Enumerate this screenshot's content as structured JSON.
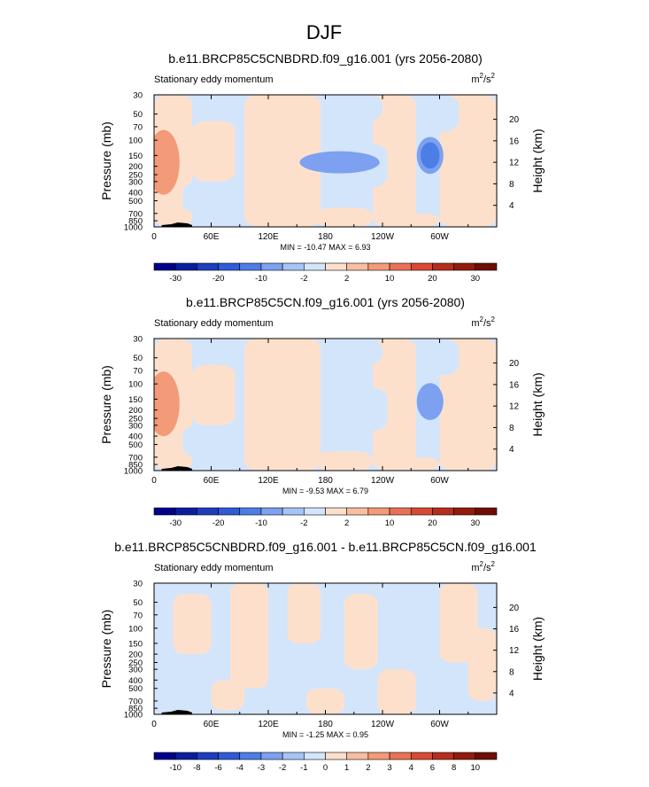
{
  "figure": {
    "title": "DJF"
  },
  "chart_data": [
    {
      "type": "heatmap",
      "title": "b.e11.BRCP85C5CNBDRD.f09_g16.001 (yrs 2056-2080)",
      "subtitle_left": "Stationary eddy momentum",
      "units": "m²/s²",
      "units_base": "m",
      "units_sup1": "2",
      "units_mid": "/s",
      "units_sup2": "2",
      "ylabel": "Pressure (mb)",
      "ylabel_right": "Height (km)",
      "xticks": [
        "0",
        "60E",
        "120E",
        "180",
        "120W",
        "60W"
      ],
      "yticks_left": [
        "30",
        "50",
        "70",
        "100",
        "150",
        "200",
        "250",
        "300",
        "400",
        "500",
        "700",
        "850",
        "1000"
      ],
      "yticks_right": [
        "20",
        "16",
        "12",
        "8",
        "4"
      ],
      "stats": "MIN = -10.47  MAX =  6.93",
      "colorbar_labels": [
        "-30",
        "-20",
        "-10",
        "-2",
        "2",
        "10",
        "20",
        "30"
      ],
      "features": [
        {
          "lon": 195,
          "p": 180,
          "rx": 30,
          "ry": 0.12,
          "v": -6
        },
        {
          "lon": 10,
          "p": 180,
          "rx": 12,
          "ry": 0.35,
          "v": 5
        },
        {
          "lon": 290,
          "p": 150,
          "rx": 10,
          "ry": 0.2,
          "v": -10.47
        }
      ]
    },
    {
      "type": "heatmap",
      "title": "b.e11.BRCP85C5CN.f09_g16.001 (yrs 2056-2080)",
      "subtitle_left": "Stationary eddy momentum",
      "units": "m²/s²",
      "units_base": "m",
      "units_sup1": "2",
      "units_mid": "/s",
      "units_sup2": "2",
      "ylabel": "Pressure (mb)",
      "ylabel_right": "Height (km)",
      "xticks": [
        "0",
        "60E",
        "120E",
        "180",
        "120W",
        "60W"
      ],
      "yticks_left": [
        "30",
        "50",
        "70",
        "100",
        "150",
        "200",
        "250",
        "300",
        "400",
        "500",
        "700",
        "850",
        "1000"
      ],
      "yticks_right": [
        "20",
        "16",
        "12",
        "8",
        "4"
      ],
      "stats": "MIN = -9.53  MAX =  6.79",
      "colorbar_labels": [
        "-30",
        "-20",
        "-10",
        "-2",
        "2",
        "10",
        "20",
        "30"
      ],
      "features": [
        {
          "lon": 10,
          "p": 170,
          "rx": 12,
          "ry": 0.35,
          "v": 5
        },
        {
          "lon": 290,
          "p": 160,
          "rx": 10,
          "ry": 0.2,
          "v": -9.53
        }
      ]
    },
    {
      "type": "heatmap",
      "title": "b.e11.BRCP85C5CNBDRD.f09_g16.001 - b.e11.BRCP85C5CN.f09_g16.001",
      "subtitle_left": "Stationary eddy momentum",
      "units": "m²/s²",
      "units_base": "m",
      "units_sup1": "2",
      "units_mid": "/s",
      "units_sup2": "2",
      "ylabel": "Pressure (mb)",
      "ylabel_right": "Height (km)",
      "xticks": [
        "0",
        "60E",
        "120E",
        "180",
        "120W",
        "60W"
      ],
      "yticks_left": [
        "30",
        "50",
        "70",
        "100",
        "150",
        "200",
        "250",
        "300",
        "400",
        "500",
        "700",
        "850",
        "1000"
      ],
      "yticks_right": [
        "20",
        "16",
        "12",
        "8",
        "4"
      ],
      "stats": "MIN = -1.25  MAX =  0.95",
      "colorbar_labels": [
        "-10",
        "-8",
        "-6",
        "-4",
        "-3",
        "-2",
        "-1",
        "0",
        "1",
        "2",
        "3",
        "4",
        "6",
        "8",
        "10"
      ],
      "features": []
    }
  ],
  "colors": {
    "palette": [
      "#00008b",
      "#0b1d9f",
      "#1e3dbf",
      "#2f5bd8",
      "#4d7ee6",
      "#7da1f0",
      "#a6c4f7",
      "#d3e5fb",
      "#fde0cc",
      "#f9bea0",
      "#f39a78",
      "#ea7254",
      "#d94a34",
      "#b62d1b",
      "#931b0e",
      "#6e0d07"
    ],
    "light_blue": "#d3e5fb",
    "light_salmon": "#fde0cc"
  }
}
